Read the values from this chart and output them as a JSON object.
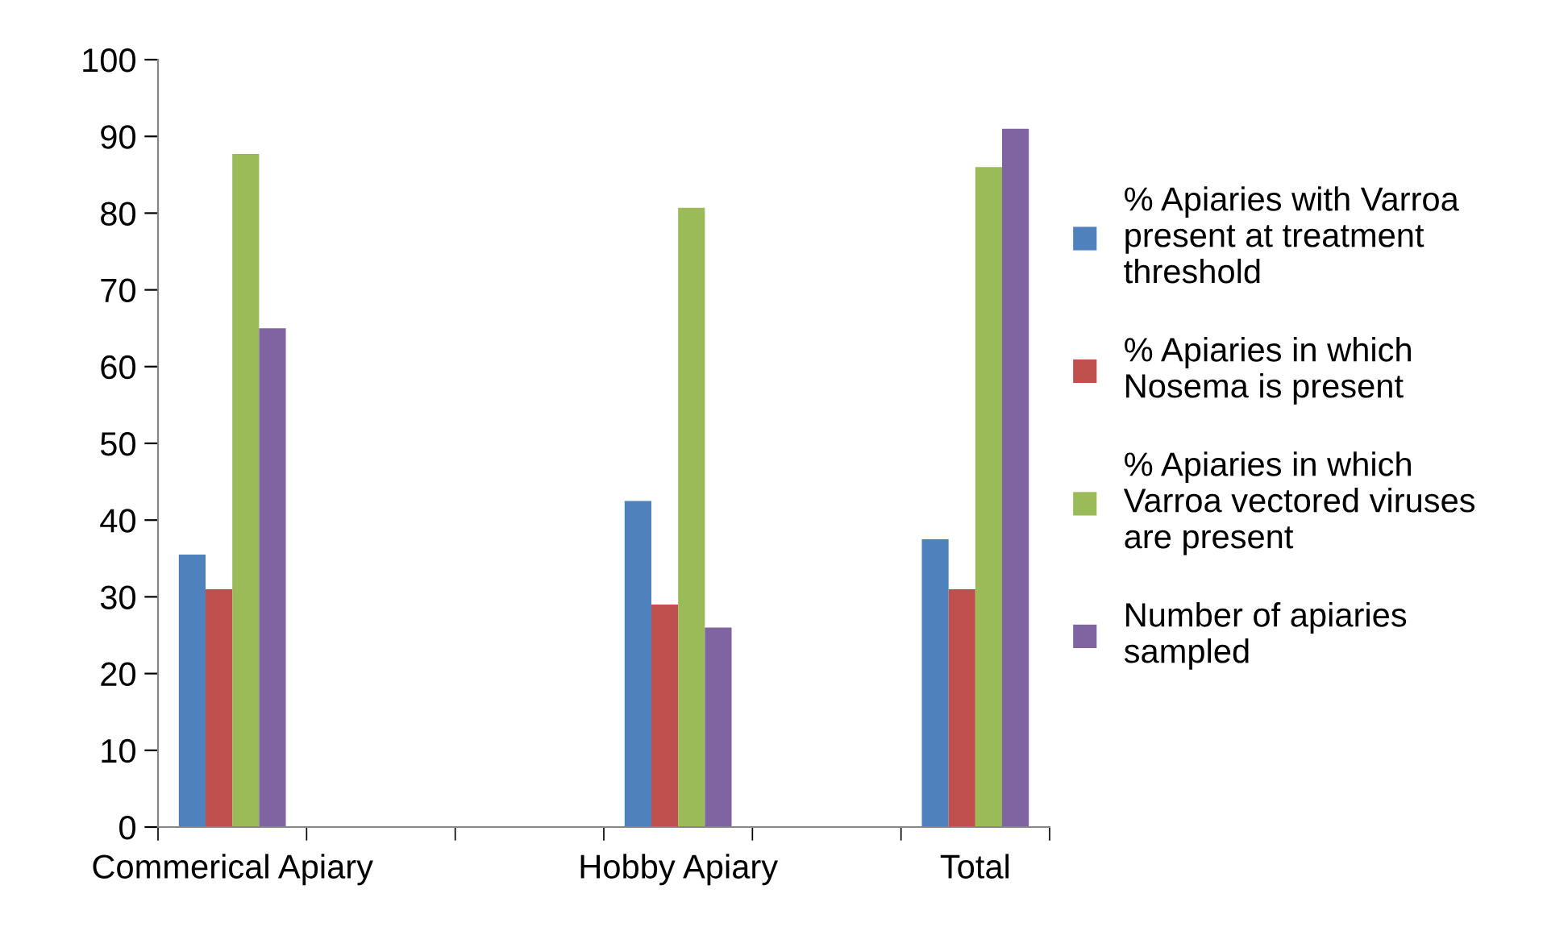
{
  "chart_data": {
    "type": "bar",
    "categories": [
      "Commerical Apiary",
      null,
      null,
      "Hobby Apiary",
      null,
      "Total"
    ],
    "series": [
      {
        "name": "% Apiaries with Varroa\npresent at treatment\nthreshold",
        "color": "#4f81bd",
        "values": [
          35.5,
          null,
          null,
          42.5,
          null,
          37.5
        ]
      },
      {
        "name": "% Apiaries in which\nNosema is present",
        "color": "#c0504d",
        "values": [
          31,
          null,
          null,
          29,
          null,
          31
        ]
      },
      {
        "name": "% Apiaries in which\nVarroa vectored viruses\nare present",
        "color": "#9bbb59",
        "values": [
          87.7,
          null,
          null,
          80.7,
          null,
          86
        ]
      },
      {
        "name": "Number of apiaries\nsampled",
        "color": "#8064a2",
        "values": [
          65,
          null,
          null,
          26,
          null,
          91
        ]
      }
    ],
    "ylim": [
      0,
      100
    ],
    "yticks": [
      0,
      10,
      20,
      30,
      40,
      50,
      60,
      70,
      80,
      90,
      100
    ],
    "grid": false,
    "legend": "right"
  }
}
